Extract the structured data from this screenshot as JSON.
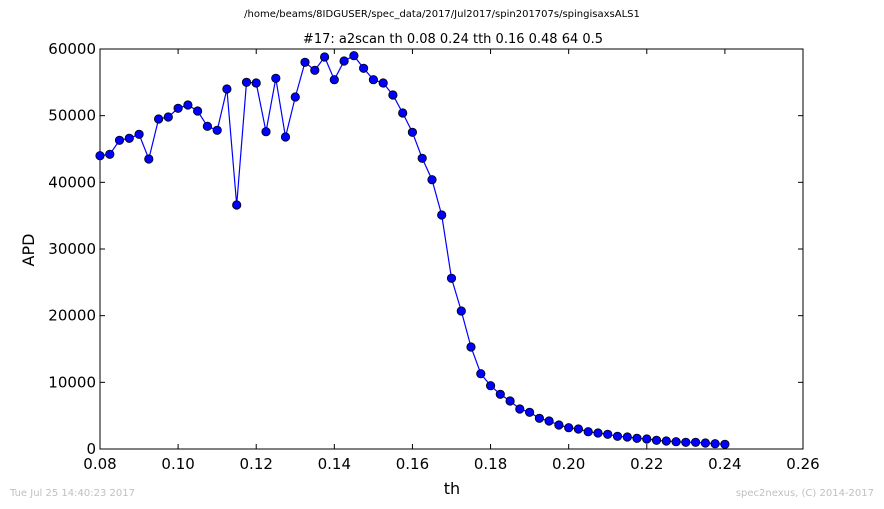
{
  "header": {
    "file_path": "/home/beams/8IDGUSER/spec_data/2017/Jul2017/spin201707s/spingisaxsALS1"
  },
  "footer": {
    "timestamp": "Tue Jul 25 14:40:23 2017",
    "credit": "spec2nexus, (C) 2014-2017"
  },
  "colors": {
    "series": "#0000ff",
    "marker_edge": "#000000",
    "axes": "#000000",
    "footer_text": "#c0c0c0"
  },
  "chart_data": {
    "type": "line",
    "title": "#17: a2scan  th 0.08 0.24  tth 0.16 0.48  64 0.5",
    "xlabel": "th",
    "ylabel": "APD",
    "xlim": [
      0.08,
      0.26
    ],
    "ylim": [
      0,
      60000
    ],
    "xticks": [
      0.08,
      0.1,
      0.12,
      0.14,
      0.16,
      0.18,
      0.2,
      0.22,
      0.24,
      0.26
    ],
    "xtick_labels": [
      "0.08",
      "0.10",
      "0.12",
      "0.14",
      "0.16",
      "0.18",
      "0.20",
      "0.22",
      "0.24",
      "0.26"
    ],
    "yticks": [
      0,
      10000,
      20000,
      30000,
      40000,
      50000,
      60000
    ],
    "ytick_labels": [
      "0",
      "10000",
      "20000",
      "30000",
      "40000",
      "50000",
      "60000"
    ],
    "grid": false,
    "marker": "circle",
    "series": [
      {
        "x": [
          0.08,
          0.0825,
          0.085,
          0.0875,
          0.09,
          0.0925,
          0.095,
          0.0975,
          0.1,
          0.1025,
          0.105,
          0.1075,
          0.11,
          0.1125,
          0.115,
          0.1175,
          0.12,
          0.1225,
          0.125,
          0.1275,
          0.13,
          0.1325,
          0.135,
          0.1375,
          0.14,
          0.1425,
          0.145,
          0.1475,
          0.15,
          0.1525,
          0.155,
          0.1575,
          0.16,
          0.1625,
          0.165,
          0.1675,
          0.17,
          0.1725,
          0.175,
          0.1775,
          0.18,
          0.1825,
          0.185,
          0.1875,
          0.19,
          0.1925,
          0.195,
          0.1975,
          0.2,
          0.2025,
          0.205,
          0.2075,
          0.21,
          0.2125,
          0.215,
          0.2175,
          0.22,
          0.2225,
          0.225,
          0.2275,
          0.23,
          0.2325,
          0.235,
          0.2375,
          0.24
        ],
        "y": [
          44000,
          44200,
          46300,
          46600,
          47200,
          43500,
          49500,
          49800,
          51100,
          51600,
          50700,
          48400,
          47800,
          54000,
          36600,
          55000,
          54900,
          47600,
          55600,
          46800,
          52800,
          58000,
          56800,
          58800,
          55400,
          58200,
          59000,
          57100,
          55400,
          54900,
          53100,
          50400,
          47500,
          43600,
          40400,
          35100,
          25600,
          20700,
          15300,
          11300,
          9500,
          8200,
          7200,
          6000,
          5500,
          4600,
          4200,
          3600,
          3200,
          3000,
          2600,
          2400,
          2200,
          1900,
          1800,
          1600,
          1500,
          1300,
          1200,
          1100,
          1000,
          1000,
          900,
          800,
          700
        ]
      }
    ]
  }
}
